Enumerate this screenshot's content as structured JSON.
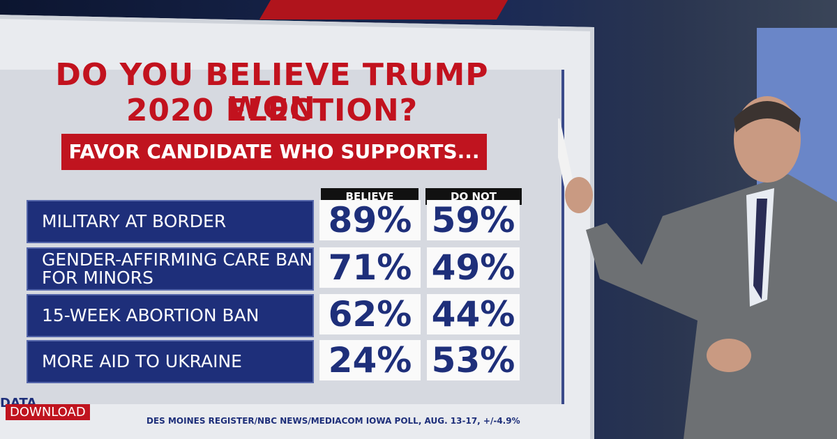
{
  "header": {
    "title": [
      "DO YOU BELIEVE TRUMP WON",
      "2020 ELECTION?"
    ],
    "subtitle": "FAVOR CANDIDATE WHO SUPPORTS..."
  },
  "table": {
    "columns": [
      "BELIEVE",
      "DO NOT BELIEVE"
    ],
    "rows": [
      [
        "MILITARY AT BORDER",
        "89%",
        "59%"
      ],
      [
        "GENDER-AFFIRMING CARE BAN FOR MINORS",
        "71%",
        "49%"
      ],
      [
        "15-WEEK ABORTION BAN",
        "62%",
        "44%"
      ],
      [
        "MORE AID TO UKRAINE",
        "24%",
        "53%"
      ]
    ]
  },
  "footer": {
    "brand": [
      "DATA",
      "DOWNLOAD"
    ],
    "source": "DES MOINES REGISTER/NBC NEWS/MEDIACOM IOWA POLL, AUG. 13-17, +/-4.9%"
  }
}
